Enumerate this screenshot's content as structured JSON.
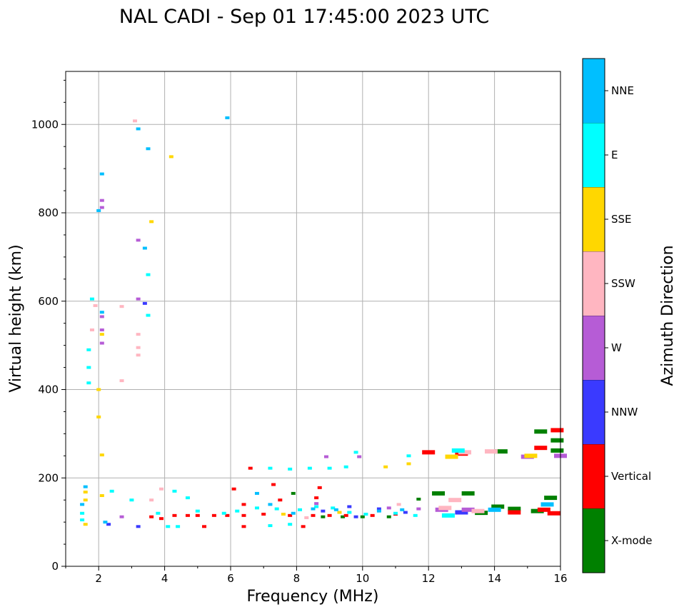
{
  "chart_data": {
    "type": "scatter",
    "title": "NAL CADI - Sep 01 17:45:00 2023 UTC",
    "xlabel": "Frequency (MHz)",
    "ylabel": "Virtual height (km)",
    "xlim": [
      1,
      16
    ],
    "ylim": [
      0,
      1120
    ],
    "xticks": [
      2,
      4,
      6,
      8,
      10,
      12,
      14,
      16
    ],
    "yticks": [
      0,
      200,
      400,
      600,
      800,
      1000
    ],
    "grid": true,
    "colorbar": {
      "label": "Azimuth Direction",
      "categories": [
        {
          "name": "X-mode",
          "color": "#008000"
        },
        {
          "name": "Vertical",
          "color": "#ff0000"
        },
        {
          "name": "NNW",
          "color": "#3a3aff"
        },
        {
          "name": "W",
          "color": "#b65cd6"
        },
        {
          "name": "SSW",
          "color": "#ffb6c1"
        },
        {
          "name": "SSE",
          "color": "#ffd700"
        },
        {
          "name": "E",
          "color": "#00ffff"
        },
        {
          "name": "NNE",
          "color": "#00bfff"
        }
      ]
    },
    "series": [
      {
        "name": "X-mode",
        "points": [
          [
            12.3,
            165
          ],
          [
            13.2,
            165
          ],
          [
            14.2,
            260
          ],
          [
            14.1,
            135
          ],
          [
            14.6,
            130
          ],
          [
            15.4,
            305
          ],
          [
            15.9,
            285
          ],
          [
            15.9,
            262
          ],
          [
            15.7,
            155
          ],
          [
            15.3,
            125
          ],
          [
            10.0,
            112
          ],
          [
            10.8,
            112
          ],
          [
            11.7,
            152
          ],
          [
            13.6,
            121
          ],
          [
            7.9,
            165
          ],
          [
            9.4,
            112
          ],
          [
            8.8,
            112
          ]
        ]
      },
      {
        "name": "Vertical",
        "points": [
          [
            4.3,
            115
          ],
          [
            4.7,
            115
          ],
          [
            5.0,
            115
          ],
          [
            5.5,
            115
          ],
          [
            5.9,
            115
          ],
          [
            6.4,
            115
          ],
          [
            7.0,
            118
          ],
          [
            7.8,
            115
          ],
          [
            8.5,
            115
          ],
          [
            9.0,
            115
          ],
          [
            9.5,
            115
          ],
          [
            10.3,
            115
          ],
          [
            11.0,
            118
          ],
          [
            12.0,
            258
          ],
          [
            13.0,
            255
          ],
          [
            14.6,
            122
          ],
          [
            15.5,
            128
          ],
          [
            15.8,
            120
          ],
          [
            15.9,
            308
          ],
          [
            15.4,
            268
          ],
          [
            6.6,
            222
          ],
          [
            6.1,
            175
          ],
          [
            6.4,
            140
          ],
          [
            7.3,
            185
          ],
          [
            8.7,
            178
          ],
          [
            3.6,
            112
          ],
          [
            3.9,
            108
          ],
          [
            5.2,
            90
          ],
          [
            6.4,
            90
          ],
          [
            8.2,
            90
          ],
          [
            7.5,
            150
          ],
          [
            8.6,
            155
          ]
        ]
      },
      {
        "name": "NNW",
        "points": [
          [
            2.3,
            95
          ],
          [
            3.2,
            90
          ],
          [
            3.4,
            595
          ],
          [
            8.8,
            125
          ],
          [
            9.6,
            135
          ],
          [
            10.5,
            130
          ],
          [
            11.3,
            122
          ],
          [
            13.0,
            122
          ],
          [
            9.8,
            112
          ]
        ]
      },
      {
        "name": "W",
        "points": [
          [
            2.1,
            828
          ],
          [
            2.1,
            812
          ],
          [
            2.1,
            535
          ],
          [
            2.1,
            505
          ],
          [
            2.1,
            565
          ],
          [
            3.2,
            738
          ],
          [
            3.2,
            605
          ],
          [
            2.7,
            112
          ],
          [
            8.9,
            248
          ],
          [
            9.9,
            248
          ],
          [
            15.0,
            248
          ],
          [
            16.0,
            250
          ],
          [
            12.4,
            128
          ],
          [
            13.2,
            128
          ],
          [
            8.6,
            142
          ],
          [
            10.8,
            132
          ],
          [
            11.7,
            130
          ]
        ]
      },
      {
        "name": "SSW",
        "points": [
          [
            3.2,
            525
          ],
          [
            3.2,
            495
          ],
          [
            3.2,
            478
          ],
          [
            3.1,
            1008
          ],
          [
            2.7,
            588
          ],
          [
            2.7,
            420
          ],
          [
            1.9,
            590
          ],
          [
            1.8,
            535
          ],
          [
            13.1,
            258
          ],
          [
            13.9,
            260
          ],
          [
            12.5,
            132
          ],
          [
            13.5,
            125
          ],
          [
            12.8,
            150
          ],
          [
            3.6,
            150
          ],
          [
            3.9,
            175
          ],
          [
            8.3,
            110
          ],
          [
            11.1,
            140
          ]
        ]
      },
      {
        "name": "SSE",
        "points": [
          [
            4.2,
            927
          ],
          [
            3.6,
            780
          ],
          [
            2.1,
            525
          ],
          [
            2.0,
            400
          ],
          [
            2.0,
            338
          ],
          [
            2.1,
            252
          ],
          [
            2.1,
            160
          ],
          [
            1.6,
            168
          ],
          [
            1.6,
            150
          ],
          [
            1.6,
            95
          ],
          [
            11.4,
            232
          ],
          [
            12.7,
            248
          ],
          [
            15.1,
            250
          ],
          [
            10.7,
            225
          ],
          [
            9.3,
            122
          ],
          [
            7.6,
            118
          ]
        ]
      },
      {
        "name": "E",
        "points": [
          [
            1.7,
            490
          ],
          [
            1.7,
            450
          ],
          [
            1.7,
            415
          ],
          [
            1.8,
            605
          ],
          [
            3.5,
            660
          ],
          [
            3.5,
            568
          ],
          [
            3.0,
            150
          ],
          [
            2.4,
            170
          ],
          [
            4.3,
            170
          ],
          [
            4.7,
            155
          ],
          [
            5.0,
            125
          ],
          [
            5.8,
            120
          ],
          [
            6.2,
            125
          ],
          [
            6.8,
            132
          ],
          [
            7.4,
            130
          ],
          [
            8.1,
            128
          ],
          [
            8.6,
            135
          ],
          [
            9.1,
            132
          ],
          [
            9.6,
            122
          ],
          [
            10.1,
            118
          ],
          [
            11.0,
            120
          ],
          [
            11.6,
            115
          ],
          [
            12.6,
            115
          ],
          [
            7.2,
            222
          ],
          [
            7.8,
            220
          ],
          [
            8.4,
            222
          ],
          [
            9.0,
            222
          ],
          [
            9.5,
            225
          ],
          [
            9.8,
            258
          ],
          [
            11.4,
            250
          ],
          [
            12.9,
            262
          ],
          [
            3.8,
            120
          ],
          [
            4.1,
            90
          ],
          [
            4.4,
            90
          ],
          [
            7.2,
            92
          ],
          [
            7.8,
            95
          ],
          [
            1.5,
            120
          ],
          [
            1.5,
            105
          ]
        ]
      },
      {
        "name": "NNE",
        "points": [
          [
            3.5,
            945
          ],
          [
            3.2,
            990
          ],
          [
            2.1,
            888
          ],
          [
            2.0,
            805
          ],
          [
            3.4,
            720
          ],
          [
            1.5,
            140
          ],
          [
            1.6,
            180
          ],
          [
            2.2,
            100
          ],
          [
            2.1,
            575
          ],
          [
            5.9,
            1015
          ],
          [
            6.8,
            165
          ],
          [
            7.2,
            140
          ],
          [
            7.9,
            120
          ],
          [
            8.5,
            130
          ],
          [
            9.2,
            128
          ],
          [
            10.5,
            125
          ],
          [
            11.2,
            128
          ],
          [
            14.0,
            128
          ],
          [
            15.6,
            140
          ]
        ]
      }
    ]
  }
}
